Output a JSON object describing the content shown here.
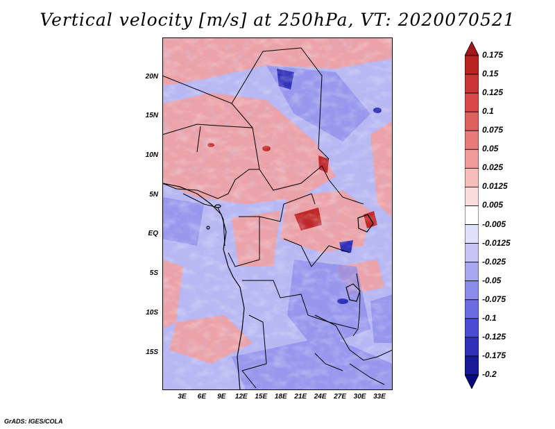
{
  "title": "Vertical velocity [m/s] at 250hPa, VT: 2020070521",
  "footer": "GrADS: IGES/COLA",
  "map": {
    "lat_labels": [
      "20N",
      "15N",
      "10N",
      "5N",
      "EQ",
      "5S",
      "10S",
      "15S"
    ],
    "lon_labels": [
      "3E",
      "6E",
      "9E",
      "12E",
      "15E",
      "18E",
      "21E",
      "24E",
      "27E",
      "30E",
      "33E"
    ],
    "lat_values": [
      20,
      15,
      10,
      5,
      0,
      -5,
      -10,
      -15
    ],
    "lon_values": [
      3,
      6,
      9,
      12,
      15,
      18,
      21,
      24,
      27,
      30,
      33
    ],
    "lon_range": [
      0,
      35
    ],
    "lat_range": [
      -19.8,
      25
    ],
    "field": "vertical velocity",
    "units": "m/s",
    "level": "250hPa"
  },
  "colorbar": {
    "levels": [
      "0.175",
      "0.15",
      "0.125",
      "0.1",
      "0.075",
      "0.05",
      "0.025",
      "0.0125",
      "0.005",
      "-0.005",
      "-0.0125",
      "-0.025",
      "-0.05",
      "-0.075",
      "-0.1",
      "-0.125",
      "-0.175",
      "-0.2"
    ],
    "colors": [
      "#a01818",
      "#bb2222",
      "#cc3535",
      "#d84a4a",
      "#e06060",
      "#e87a7a",
      "#f09a9a",
      "#f7bcbc",
      "#fbdcdc",
      "#ffffff",
      "#e0e0fb",
      "#c6c6f6",
      "#a8a8f0",
      "#8c8ceb",
      "#6c6ce0",
      "#4c4cd0",
      "#3030b8",
      "#181898",
      "#0a0a80"
    ]
  }
}
